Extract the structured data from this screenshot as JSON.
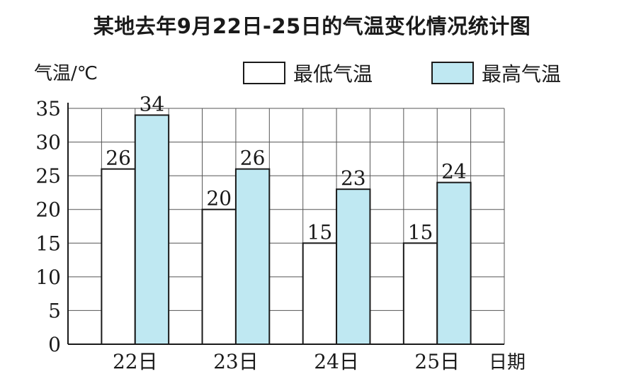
{
  "chart_data": {
    "type": "bar",
    "title": "某地去年9月22日-25日的气温变化情况统计图",
    "ylabel": "气温/℃",
    "xlabel": "日期",
    "categories": [
      "22日",
      "23日",
      "24日",
      "25日"
    ],
    "series": [
      {
        "name": "最低气温",
        "values": [
          26,
          20,
          15,
          15
        ],
        "color": "#ffffff"
      },
      {
        "name": "最高气温",
        "values": [
          34,
          26,
          23,
          24
        ],
        "color": "#bfe8f2"
      }
    ],
    "ylim": [
      0,
      35
    ],
    "yticks": [
      0,
      5,
      10,
      15,
      20,
      25,
      30,
      35
    ],
    "grid": true,
    "legend_position": "top-right"
  }
}
